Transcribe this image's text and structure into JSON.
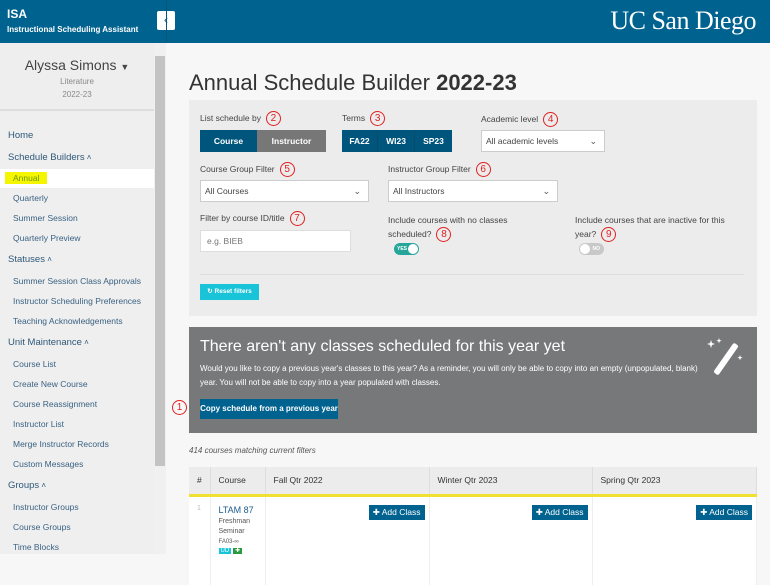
{
  "header": {
    "app_short": "ISA",
    "app_name": "Instructional Scheduling Assistant",
    "collapse_icon": "chevron-left",
    "logo": "UC San Diego",
    "color": "#00628f"
  },
  "profile": {
    "name": "Alyssa Simons",
    "dept": "Literature",
    "year": "2022-23"
  },
  "nav": [
    {
      "label": "Home",
      "type": "header"
    },
    {
      "label": "Schedule Builders",
      "type": "header",
      "expanded": true
    },
    {
      "label": "Annual",
      "type": "item",
      "active": true
    },
    {
      "label": "Quarterly",
      "type": "item"
    },
    {
      "label": "Summer Session",
      "type": "item"
    },
    {
      "label": "Quarterly Preview",
      "type": "item"
    },
    {
      "label": "Statuses",
      "type": "header",
      "expanded": true
    },
    {
      "label": "Summer Session Class Approvals",
      "type": "item"
    },
    {
      "label": "Instructor Scheduling Preferences",
      "type": "item"
    },
    {
      "label": "Teaching Acknowledgements",
      "type": "item"
    },
    {
      "label": "Unit Maintenance",
      "type": "header",
      "expanded": true
    },
    {
      "label": "Course List",
      "type": "item"
    },
    {
      "label": "Create New Course",
      "type": "item"
    },
    {
      "label": "Course Reassignment",
      "type": "item"
    },
    {
      "label": "Instructor List",
      "type": "item"
    },
    {
      "label": "Merge Instructor Records",
      "type": "item"
    },
    {
      "label": "Custom Messages",
      "type": "item"
    },
    {
      "label": "Groups",
      "type": "header",
      "expanded": true
    },
    {
      "label": "Instructor Groups",
      "type": "item"
    },
    {
      "label": "Course Groups",
      "type": "item"
    },
    {
      "label": "Time Blocks",
      "type": "item"
    }
  ],
  "page": {
    "title": "Annual Schedule Builder",
    "year": "2022-23"
  },
  "filters": {
    "list_by": {
      "label": "List schedule by",
      "marker": "2",
      "options": [
        "Course",
        "Instructor"
      ],
      "selected": "Course"
    },
    "terms": {
      "label": "Terms",
      "marker": "3",
      "options": [
        "FA22",
        "WI23",
        "SP23"
      ]
    },
    "level": {
      "label": "Academic level",
      "marker": "4",
      "value": "All academic levels"
    },
    "course_group": {
      "label": "Course Group Filter",
      "marker": "5",
      "value": "All Courses"
    },
    "instructor_group": {
      "label": "Instructor Group Filter",
      "marker": "6",
      "value": "All Instructors"
    },
    "course_id": {
      "label": "Filter by course ID/title",
      "marker": "7",
      "placeholder": "e.g. BIEB"
    },
    "no_classes": {
      "label": "Include courses with no classes",
      "label2": "scheduled?",
      "marker": "8",
      "state": "YES"
    },
    "inactive": {
      "label": "Include courses that are inactive for this",
      "label2": "year?",
      "marker": "9",
      "state": "NO"
    },
    "reset": "Reset filters"
  },
  "banner": {
    "title": "There aren't any classes scheduled for this year yet",
    "text": "Would you like to copy a previous year's classes to this year? As a reminder, you will only be able to copy into an empty (unpopulated, blank) year. You will not be able to copy into a year populated with classes.",
    "button": "Copy schedule from a previous year",
    "marker": "1",
    "icon": "magic-wand"
  },
  "count": "414 courses matching current filters",
  "table": {
    "headers": [
      "#",
      "Course",
      "Fall Qtr 2022",
      "Winter Qtr 2023",
      "Spring Qtr 2023"
    ],
    "rows": [
      {
        "num": "1",
        "course": "LTAM 87",
        "title1": "Freshman",
        "title2": "Seminar",
        "code": "FA03-∞",
        "badge": "UD",
        "add": "Add Class"
      }
    ]
  }
}
